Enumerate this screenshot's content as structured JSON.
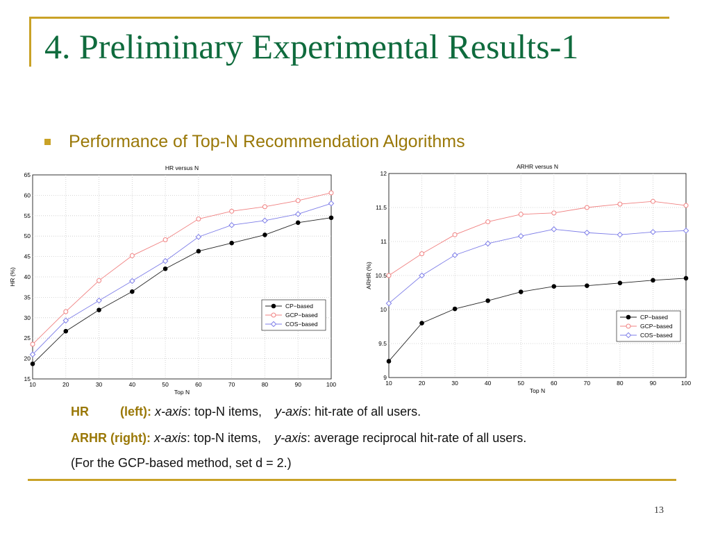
{
  "slide": {
    "title": "4. Preliminary Experimental Results-1",
    "bullet": "Performance of Top-N Recommendation Algorithms",
    "page_number": "13",
    "colors": {
      "title": "#0f6b3d",
      "accent": "#c9a227",
      "bullet_text": "#9a7808"
    }
  },
  "captions": {
    "line1": {
      "label": "HR",
      "side": "(left):",
      "x_axis": "x-axis",
      "x_desc": ": top-N items,",
      "y_axis": "y-axis",
      "y_desc": ": hit-rate of all users."
    },
    "line2": {
      "label": "ARHR (right):",
      "x_axis": "x-axis",
      "x_desc": ": top-N items,",
      "y_axis": "y-axis",
      "y_desc": ": average reciprocal hit-rate of all users."
    },
    "line3": "(For the GCP-based method, set d = 2.)"
  },
  "chart_data": [
    {
      "type": "line",
      "title": "HR versus N",
      "xlabel": "Top N",
      "ylabel": "HR (%)",
      "x": [
        10,
        20,
        30,
        40,
        50,
        60,
        70,
        80,
        90,
        100
      ],
      "xlim": [
        10,
        100
      ],
      "ylim": [
        15,
        65
      ],
      "yticks": [
        15,
        20,
        25,
        30,
        35,
        40,
        45,
        50,
        55,
        60,
        65
      ],
      "grid": true,
      "legend_position": "right",
      "series": [
        {
          "name": "CP−based",
          "color": "#222222",
          "marker": "dot",
          "values": [
            18.7,
            26.7,
            31.9,
            36.4,
            42.0,
            46.3,
            48.3,
            50.3,
            53.3,
            54.5
          ]
        },
        {
          "name": "GCP−based",
          "color": "#f08080",
          "marker": "circle",
          "values": [
            23.5,
            31.5,
            39.1,
            45.2,
            49.1,
            54.2,
            56.1,
            57.2,
            58.7,
            60.6
          ]
        },
        {
          "name": "COS−based",
          "color": "#7d7de8",
          "marker": "diamond",
          "values": [
            21.0,
            29.3,
            34.2,
            39.0,
            43.9,
            49.8,
            52.7,
            53.8,
            55.4,
            58.0
          ]
        }
      ]
    },
    {
      "type": "line",
      "title": "ARHR versus N",
      "xlabel": "Top N",
      "ylabel": "ARHR (%)",
      "x": [
        10,
        20,
        30,
        40,
        50,
        60,
        70,
        80,
        90,
        100
      ],
      "xlim": [
        10,
        100
      ],
      "ylim": [
        9,
        12
      ],
      "yticks": [
        9,
        9.5,
        10,
        10.5,
        11,
        11.5,
        12
      ],
      "grid": true,
      "legend_position": "lower right",
      "series": [
        {
          "name": "CP−based",
          "color": "#222222",
          "marker": "dot",
          "values": [
            9.24,
            9.8,
            10.01,
            10.13,
            10.26,
            10.34,
            10.35,
            10.39,
            10.43,
            10.46
          ]
        },
        {
          "name": "GCP−based",
          "color": "#f08080",
          "marker": "circle",
          "values": [
            10.5,
            10.82,
            11.1,
            11.29,
            11.4,
            11.42,
            11.5,
            11.55,
            11.59,
            11.53
          ]
        },
        {
          "name": "COS−based",
          "color": "#7d7de8",
          "marker": "diamond",
          "values": [
            10.09,
            10.5,
            10.8,
            10.97,
            11.08,
            11.18,
            11.13,
            11.1,
            11.14,
            11.16
          ]
        }
      ]
    }
  ]
}
